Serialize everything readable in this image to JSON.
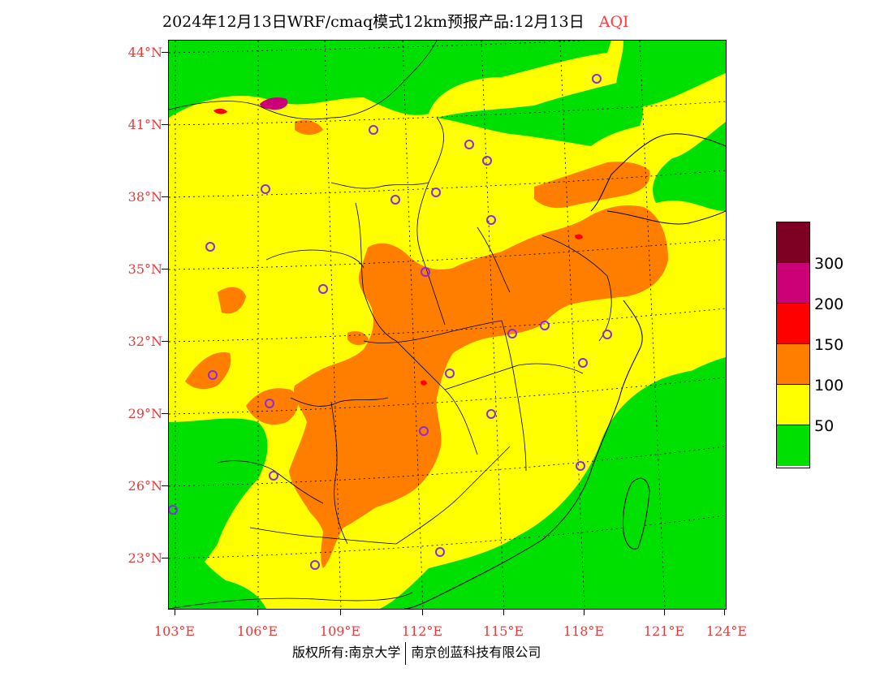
{
  "title": {
    "main": "2024年12月13日WRF/cmaq模式12km预报产品:12月13日",
    "variable": "AQI"
  },
  "axes": {
    "lat_labels": [
      "44°N",
      "41°N",
      "38°N",
      "35°N",
      "32°N",
      "29°N",
      "26°N",
      "23°N"
    ],
    "lon_labels": [
      "103°E",
      "106°E",
      "109°E",
      "112°E",
      "115°E",
      "118°E",
      "121°E",
      "124°E"
    ]
  },
  "colors": {
    "good": "#00e000",
    "moderate": "#ffff00",
    "unhealthy_sensitive": "#ff7e00",
    "unhealthy": "#ff0000",
    "very_unhealthy": "#cc0077",
    "hazardous": "#7e0023",
    "station": "#8a2be2"
  },
  "legend": {
    "labels": [
      "300",
      "200",
      "150",
      "100",
      "50"
    ],
    "swatches": [
      "#7e0023",
      "#cc0077",
      "#ff0000",
      "#ff7e00",
      "#ffff00",
      "#00e000"
    ]
  },
  "footer": {
    "copyright": "版权所有:南京大学",
    "company": "南京创蓝科技有限公司"
  }
}
